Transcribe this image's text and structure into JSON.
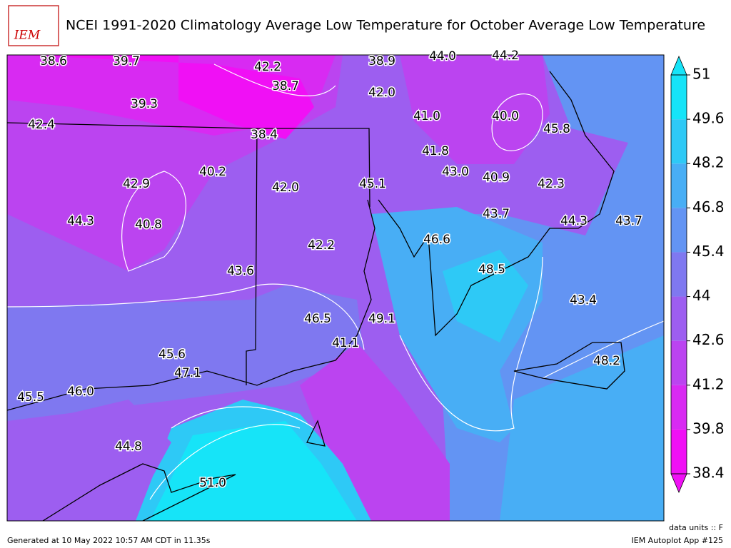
{
  "header": {
    "title": "NCEI 1991-2020 Climatology Average Low Temperature for October Average Low Temperature",
    "logo": "IEM"
  },
  "labels": [
    "38.6",
    "39.7",
    "42.2",
    "38.9",
    "44.0",
    "44.2",
    "38.7",
    "42.0",
    "39.3",
    "41.0",
    "40.0",
    "45.8",
    "42.4",
    "38.4",
    "41.8",
    "43.0",
    "40.9",
    "42.3",
    "42.9",
    "40.2",
    "42.0",
    "45.1",
    "44.3",
    "40.8",
    "43.7",
    "44.3",
    "43.7",
    "46.6",
    "42.2",
    "43.6",
    "48.5",
    "43.4",
    "46.5",
    "49.1",
    "41.1",
    "45.6",
    "47.1",
    "48.2",
    "45.5",
    "46.0",
    "44.8",
    "51.0"
  ],
  "colorbar": {
    "ticks": [
      38.4,
      39.8,
      41.2,
      42.6,
      44,
      45.4,
      46.8,
      48.2,
      49.6,
      51
    ],
    "colors": [
      "#f010f5",
      "#d82af2",
      "#bb44f0",
      "#9d5ef0",
      "#7f78f0",
      "#6394f3",
      "#48aef5",
      "#2ec9f6",
      "#16e4f8"
    ]
  },
  "footer": {
    "generated": "Generated at 10 May 2022 10:57 AM CDT in 11.35s",
    "units": "data units :: F",
    "app": "IEM Autoplot App #125"
  }
}
